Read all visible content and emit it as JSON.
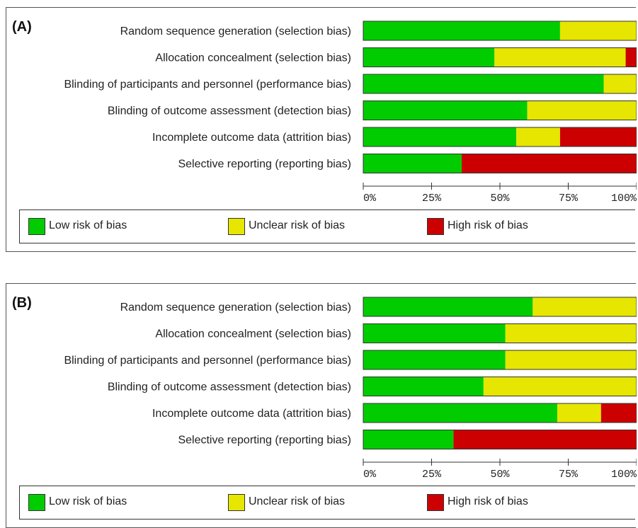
{
  "colors": {
    "low": "#00cc00",
    "unclear": "#e6e600",
    "high": "#cc0000"
  },
  "legend": {
    "low": "Low risk of bias",
    "unclear": "Unclear risk of bias",
    "high": "High risk of bias"
  },
  "chart_data": [
    {
      "type": "bar",
      "panel_label": "(A)",
      "orientation": "horizontal",
      "stacked": true,
      "categories": [
        "Random sequence generation (selection bias)",
        "Allocation concealment (selection bias)",
        "Blinding of participants and personnel (performance bias)",
        "Blinding of outcome assessment (detection bias)",
        "Incomplete outcome data (attrition bias)",
        "Selective reporting (reporting bias)"
      ],
      "series": [
        {
          "name": "Low risk of bias",
          "color": "#00cc00",
          "values": [
            72,
            48,
            88,
            60,
            56,
            36
          ]
        },
        {
          "name": "Unclear risk of bias",
          "color": "#e6e600",
          "values": [
            28,
            48,
            12,
            40,
            16,
            0
          ]
        },
        {
          "name": "High risk of bias",
          "color": "#cc0000",
          "values": [
            0,
            4,
            0,
            0,
            28,
            64
          ]
        }
      ],
      "xlim": [
        0,
        100
      ],
      "xticks": [
        "0%",
        "25%",
        "50%",
        "75%",
        "100%"
      ],
      "legend_position": "bottom"
    },
    {
      "type": "bar",
      "panel_label": "(B)",
      "orientation": "horizontal",
      "stacked": true,
      "categories": [
        "Random sequence generation (selection bias)",
        "Allocation concealment (selection bias)",
        "Blinding of participants and personnel (performance bias)",
        "Blinding of outcome assessment (detection bias)",
        "Incomplete outcome data (attrition bias)",
        "Selective reporting (reporting bias)"
      ],
      "series": [
        {
          "name": "Low risk of bias",
          "color": "#00cc00",
          "values": [
            62,
            52,
            52,
            44,
            71,
            33
          ]
        },
        {
          "name": "Unclear risk of bias",
          "color": "#e6e600",
          "values": [
            38,
            48,
            48,
            56,
            16,
            0
          ]
        },
        {
          "name": "High risk of bias",
          "color": "#cc0000",
          "values": [
            0,
            0,
            0,
            0,
            13,
            67
          ]
        }
      ],
      "xlim": [
        0,
        100
      ],
      "xticks": [
        "0%",
        "25%",
        "50%",
        "75%",
        "100%"
      ],
      "legend_position": "bottom"
    }
  ]
}
